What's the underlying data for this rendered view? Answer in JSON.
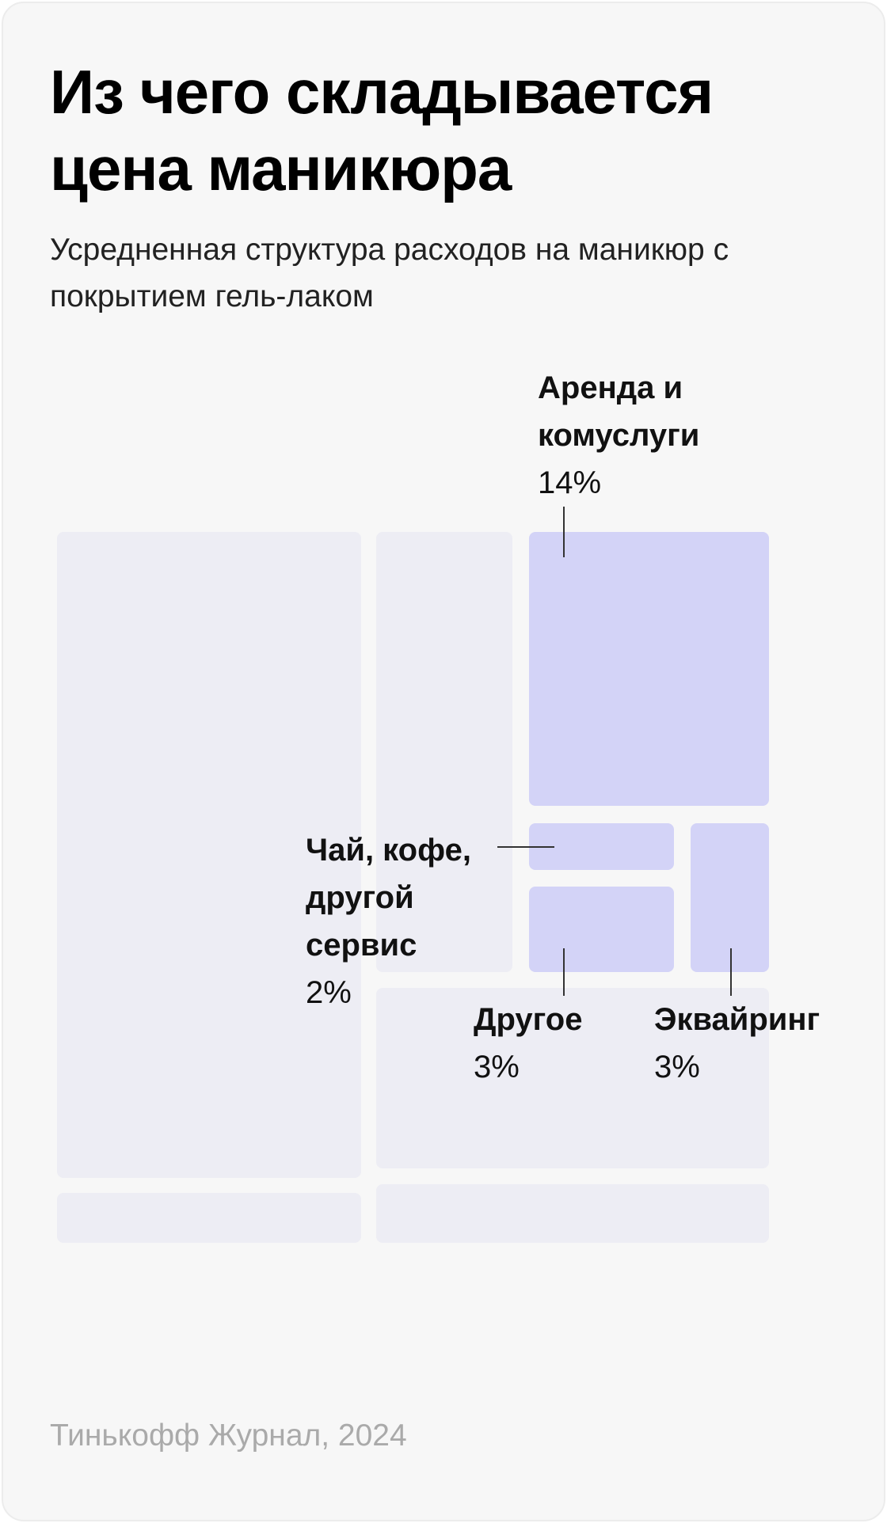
{
  "chart_data": {
    "type": "treemap",
    "title": "Из чего складывается цена маникюра",
    "subtitle": "Усредненная структура расходов на маникюр с покрытием гель-лаком",
    "source": "Тинькофф Журнал, 2024",
    "categories": [
      "Аренда и комуслуги",
      "Чай, кофе, другой сервис",
      "Другое",
      "Эквайринг"
    ],
    "values": [
      14,
      2,
      3,
      3
    ],
    "value_labels": [
      "14%",
      "2%",
      "3%",
      "3%"
    ],
    "color": "#d3d3f7"
  }
}
